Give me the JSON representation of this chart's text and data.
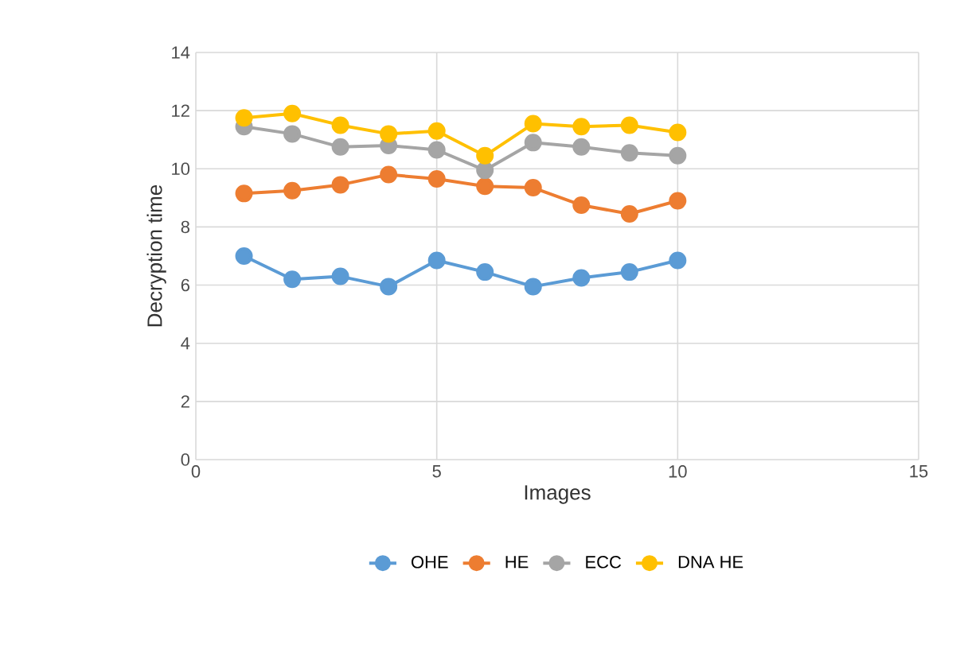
{
  "chart_data": {
    "type": "line",
    "xlabel": "Images",
    "ylabel": "Decryption time",
    "x": [
      1,
      2,
      3,
      4,
      5,
      6,
      7,
      8,
      9,
      10
    ],
    "series": [
      {
        "name": "OHE",
        "color": "#5b9bd5",
        "values": [
          7.0,
          6.2,
          6.3,
          5.95,
          6.85,
          6.45,
          5.95,
          6.25,
          6.45,
          6.85
        ]
      },
      {
        "name": "HE",
        "color": "#ed7d31",
        "values": [
          9.15,
          9.25,
          9.45,
          9.8,
          9.65,
          9.4,
          9.35,
          8.75,
          8.45,
          8.9
        ]
      },
      {
        "name": "ECC",
        "color": "#a5a5a5",
        "values": [
          11.45,
          11.2,
          10.75,
          10.8,
          10.65,
          9.95,
          10.9,
          10.75,
          10.55,
          10.45
        ]
      },
      {
        "name": "DNA HE",
        "color": "#ffc000",
        "values": [
          11.75,
          11.9,
          11.5,
          11.2,
          11.3,
          10.45,
          11.55,
          11.45,
          11.5,
          11.25
        ]
      }
    ],
    "xlim": [
      0,
      15
    ],
    "xticks": [
      0,
      5,
      10,
      15
    ],
    "ylim": [
      0,
      14
    ],
    "yticks": [
      0,
      2,
      4,
      6,
      8,
      10,
      12,
      14
    ],
    "grid": true,
    "legend": "bottom",
    "marker": "circle",
    "line_style": "solid"
  }
}
